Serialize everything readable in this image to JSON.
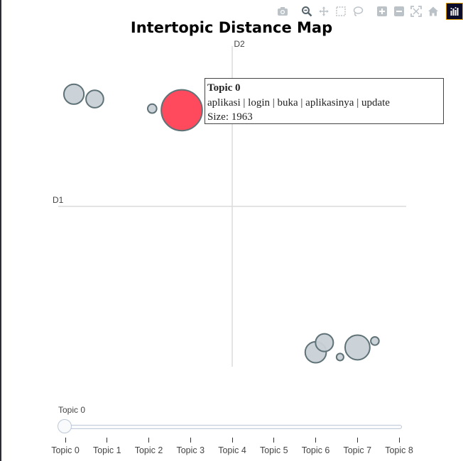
{
  "title": "Intertopic Distance Map",
  "modebar": {
    "buttons": [
      {
        "name": "camera-icon",
        "label": "Download plot as a png"
      },
      {
        "name": "zoom-icon",
        "label": "Zoom"
      },
      {
        "name": "pan-icon",
        "label": "Pan"
      },
      {
        "name": "box-select-icon",
        "label": "Box Select"
      },
      {
        "name": "lasso-select-icon",
        "label": "Lasso Select"
      },
      {
        "name": "zoom-in-icon",
        "label": "Zoom in"
      },
      {
        "name": "zoom-out-icon",
        "label": "Zoom out"
      },
      {
        "name": "autoscale-icon",
        "label": "Autoscale"
      },
      {
        "name": "reset-axes-icon",
        "label": "Reset axes"
      },
      {
        "name": "plotly-logo-icon",
        "label": "Produced with Plotly"
      }
    ]
  },
  "colors": {
    "bubble_fill": "#c8d1d6",
    "bubble_stroke": "#5f7277",
    "highlight_fill": "#ff4a5d",
    "axis_line": "#dcdcdc"
  },
  "hover": {
    "topic": "Topic 0",
    "words": "aplikasi | login | buka | aplikasinya | update",
    "size": "Size: 1963"
  },
  "chart_data": {
    "type": "scatter",
    "title": "Intertopic Distance Map",
    "xlabel": "D1",
    "ylabel": "D2",
    "xlim": [
      -10,
      10
    ],
    "ylim": [
      -10,
      10
    ],
    "grid": false,
    "highlighted_topic": "Topic 0",
    "points": [
      {
        "topic": "Topic 0",
        "x": -2.9,
        "y": 6.0,
        "size": 1963
      },
      {
        "topic": "Topic 1",
        "x": -9.1,
        "y": 7.0,
        "size": 470
      },
      {
        "topic": "Topic 2",
        "x": -7.9,
        "y": 6.7,
        "size": 360
      },
      {
        "topic": "Topic 3",
        "x": -4.6,
        "y": 6.1,
        "size": 95
      },
      {
        "topic": "Topic 4",
        "x": 4.8,
        "y": -9.1,
        "size": 520
      },
      {
        "topic": "Topic 5",
        "x": 5.3,
        "y": -8.5,
        "size": 370
      },
      {
        "topic": "Topic 6",
        "x": 6.2,
        "y": -9.4,
        "size": 60
      },
      {
        "topic": "Topic 7",
        "x": 7.2,
        "y": -8.8,
        "size": 720
      },
      {
        "topic": "Topic 8",
        "x": 8.2,
        "y": -8.4,
        "size": 80
      }
    ]
  },
  "slider": {
    "current_label": "Topic 0",
    "steps": [
      "Topic 0",
      "Topic 1",
      "Topic 2",
      "Topic 3",
      "Topic 4",
      "Topic 5",
      "Topic 6",
      "Topic 7",
      "Topic 8"
    ]
  }
}
